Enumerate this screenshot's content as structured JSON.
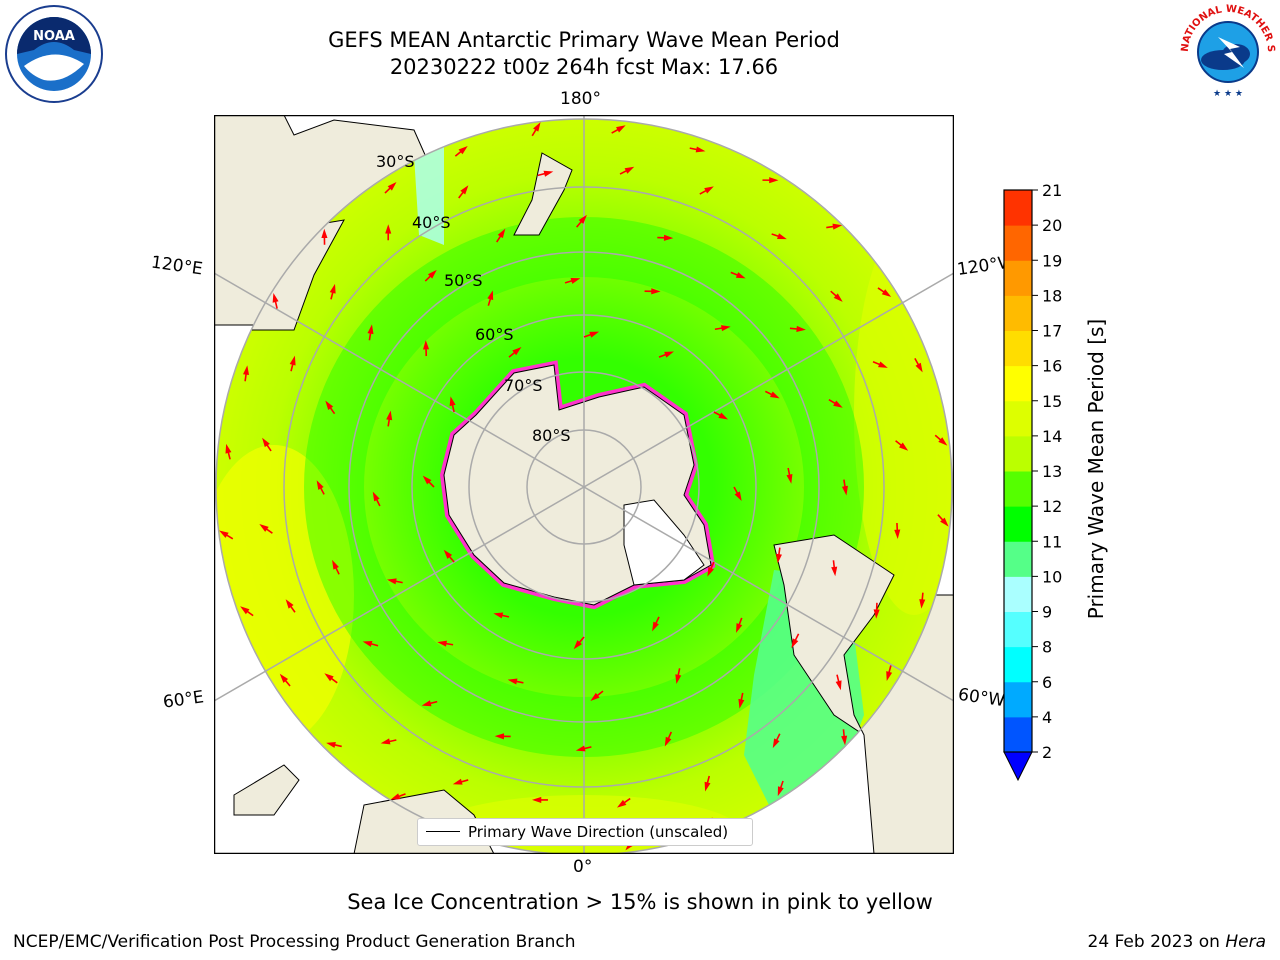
{
  "header": {
    "title_line1": "GEFS MEAN Antarctic Primary Wave Mean Period",
    "title_line2": "20230222 t00z 264h fcst   Max: 17.66"
  },
  "logos": {
    "noaa_text": "NOAA",
    "nws_text": "NATIONAL WEATHER SERVICE"
  },
  "map": {
    "lon_labels": {
      "top": "180°",
      "bottom": "0°",
      "left_upper": "120°E",
      "left_lower": "60°E",
      "right_upper": "120°W",
      "right_lower": "60°W"
    },
    "lat_labels": [
      "30°S",
      "40°S",
      "50°S",
      "60°S",
      "70°S",
      "80°S"
    ],
    "legend": "Primary Wave Direction (unscaled)",
    "ice_color": "#ff33cc",
    "land_color": "#efecdc",
    "arrow_color": "#ff0000"
  },
  "colorbar": {
    "label": "Primary Wave Mean Period [s]",
    "ticks": [
      "2",
      "4",
      "6",
      "8",
      "9",
      "10",
      "11",
      "12",
      "13",
      "14",
      "15",
      "16",
      "17",
      "18",
      "19",
      "20",
      "21"
    ],
    "colors": [
      "#0055ff",
      "#00aaff",
      "#00ffff",
      "#55ffff",
      "#aaffff",
      "#55ff88",
      "#00ff00",
      "#55ff00",
      "#bbff00",
      "#ddff00",
      "#ffff00",
      "#ffdd00",
      "#ffbb00",
      "#ff9900",
      "#ff6600",
      "#ff3300",
      "#ff0000"
    ],
    "extend_color": "#0000ff"
  },
  "footer": {
    "note": "Sea Ice Concentration > 15% is shown in pink to yellow",
    "left": "NCEP/EMC/Verification Post Processing Product Generation Branch",
    "right_date": "24 Feb 2023 on ",
    "right_host": "Hera"
  }
}
